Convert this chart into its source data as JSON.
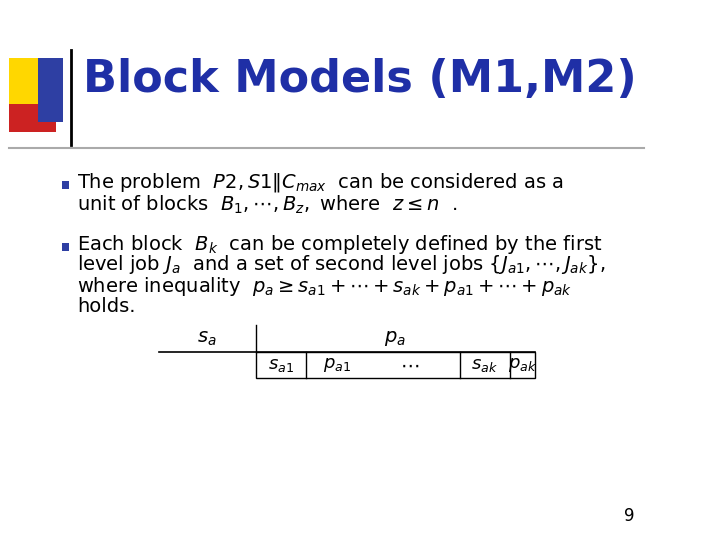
{
  "title": "Block Models (M1,M2)",
  "title_color": "#1F2FA6",
  "title_fontsize": 32,
  "background_color": "#FFFFFF",
  "slide_number": "9",
  "body_text_color": "#000000",
  "body_fontsize": 14,
  "bullet_color": "#2E3FA3",
  "accent_yellow": "#FFD700",
  "accent_red": "#CC2222",
  "accent_blue": "#2E3FA3",
  "line_color": "#AAAAAA"
}
